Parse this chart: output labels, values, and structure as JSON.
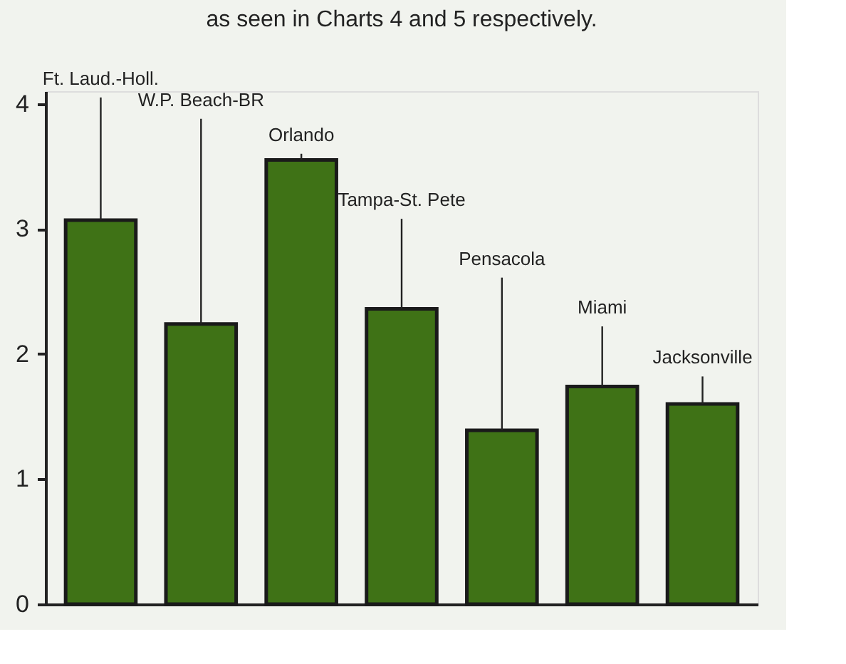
{
  "chart_data": {
    "type": "bar",
    "categories": [
      "Ft. Laud.-Holl.",
      "W.P. Beach-BR",
      "Orlando",
      "Tampa-St. Pete",
      "Pensacola",
      "Miami",
      "Jacksonville"
    ],
    "values": [
      3.07,
      2.24,
      3.55,
      2.36,
      1.39,
      1.74,
      1.6
    ],
    "errors": [
      [
        3.07,
        4.05
      ],
      [
        2.24,
        3.88
      ],
      [
        3.55,
        3.6
      ],
      [
        2.36,
        3.08
      ],
      [
        1.39,
        2.61
      ],
      [
        1.74,
        2.22
      ],
      [
        1.6,
        1.82
      ]
    ],
    "color": "#3f7216",
    "ylim": [
      0,
      4.1
    ],
    "yticks": [
      0,
      1,
      2,
      3,
      4
    ],
    "grid": false,
    "tick_labels": "y",
    "annotations": [
      "as seen in Charts 4 and 5 respectively."
    ]
  }
}
